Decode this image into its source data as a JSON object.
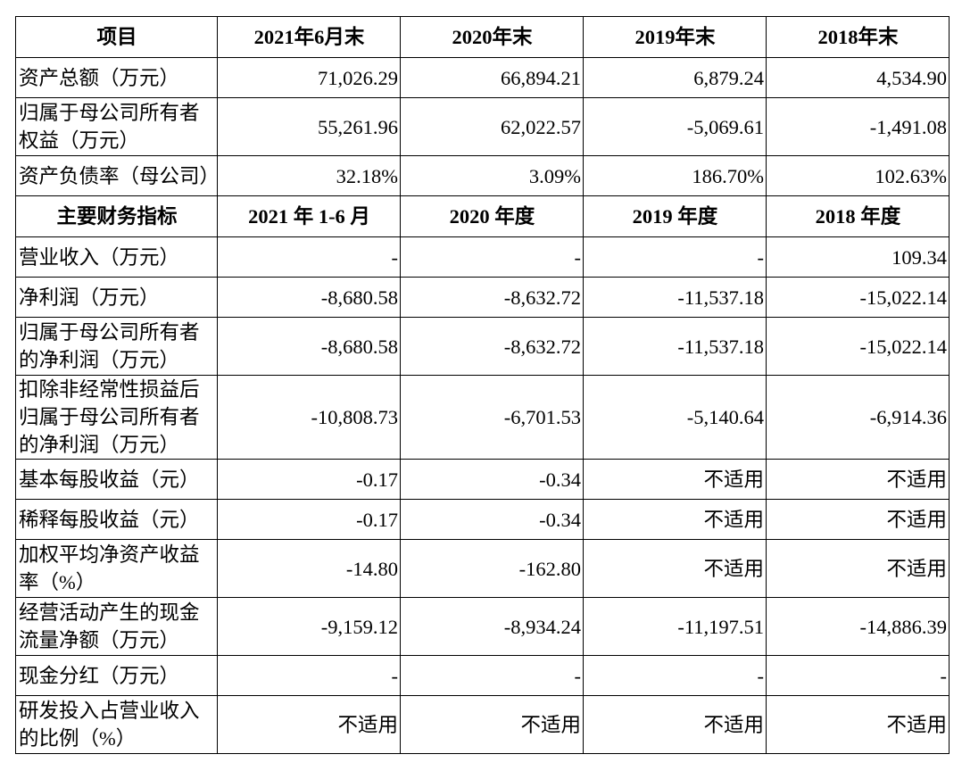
{
  "balance_header": [
    "项目",
    "2021年6月末",
    "2020年末",
    "2019年末",
    "2018年末"
  ],
  "balance_rows": [
    {
      "label": "资产总额（万元）",
      "values": [
        "71,026.29",
        "66,894.21",
        "6,879.24",
        "4,534.90"
      ]
    },
    {
      "label": "归属于母公司所有者权益（万元）",
      "values": [
        "55,261.96",
        "62,022.57",
        "-5,069.61",
        "-1,491.08"
      ]
    },
    {
      "label": "资产负债率（母公司）",
      "values": [
        "32.18%",
        "3.09%",
        "186.70%",
        "102.63%"
      ]
    }
  ],
  "indicator_header": [
    "主要财务指标",
    "2021 年 1-6 月",
    "2020 年度",
    "2019 年度",
    "2018 年度"
  ],
  "indicator_rows": [
    {
      "label": "营业收入（万元）",
      "values": [
        "-",
        "-",
        "-",
        "109.34"
      ]
    },
    {
      "label": "净利润（万元）",
      "values": [
        "-8,680.58",
        "-8,632.72",
        "-11,537.18",
        "-15,022.14"
      ]
    },
    {
      "label": "归属于母公司所有者的净利润（万元）",
      "values": [
        "-8,680.58",
        "-8,632.72",
        "-11,537.18",
        "-15,022.14"
      ]
    },
    {
      "label": "扣除非经常性损益后归属于母公司所有者的净利润（万元）",
      "values": [
        "-10,808.73",
        "-6,701.53",
        "-5,140.64",
        "-6,914.36"
      ]
    },
    {
      "label": "基本每股收益（元）",
      "values": [
        "-0.17",
        "-0.34",
        "不适用",
        "不适用"
      ]
    },
    {
      "label": "稀释每股收益（元）",
      "values": [
        "-0.17",
        "-0.34",
        "不适用",
        "不适用"
      ]
    },
    {
      "label": "加权平均净资产收益率（%）",
      "values": [
        "-14.80",
        "-162.80",
        "不适用",
        "不适用"
      ]
    },
    {
      "label": "经营活动产生的现金流量净额（万元）",
      "values": [
        "-9,159.12",
        "-8,934.24",
        "-11,197.51",
        "-14,886.39"
      ]
    },
    {
      "label": "现金分红（万元）",
      "values": [
        "-",
        "-",
        "-",
        "-"
      ]
    },
    {
      "label": "研发投入占营业收入的比例（%）",
      "values": [
        "不适用",
        "不适用",
        "不适用",
        "不适用"
      ]
    }
  ]
}
